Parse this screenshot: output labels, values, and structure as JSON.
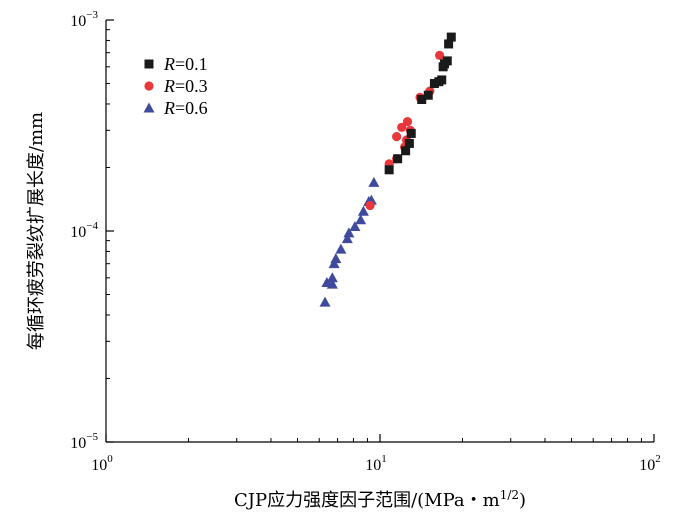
{
  "chart_data": {
    "type": "scatter",
    "x_scale": "log",
    "y_scale": "log",
    "xlim": [
      1,
      100
    ],
    "ylim": [
      1e-05,
      0.001
    ],
    "xlabel": "CJP应力强度因子范围/(MPa・m",
    "xlabel_sup": "1/2",
    "xlabel_end": ")",
    "ylabel": "每循环疲劳裂纹扩展长度/mm",
    "x_ticks": [
      {
        "value": 1,
        "base": "10",
        "exp": "0"
      },
      {
        "value": 10,
        "base": "10",
        "exp": "1"
      },
      {
        "value": 100,
        "base": "10",
        "exp": "2"
      }
    ],
    "y_ticks": [
      {
        "value": 0.001,
        "base": "10",
        "exp": "−3"
      },
      {
        "value": 0.0001,
        "base": "10",
        "exp": "−4"
      },
      {
        "value": 1e-05,
        "base": "10",
        "exp": "−5"
      }
    ],
    "legend_position": "top-left",
    "series": [
      {
        "name_prefix": "R",
        "name_suffix": "=0.1",
        "marker": "square",
        "color": "#1a1a1a",
        "points": [
          [
            10.8,
            0.000195
          ],
          [
            11.6,
            0.00022
          ],
          [
            12.4,
            0.00024
          ],
          [
            12.8,
            0.00026
          ],
          [
            13.0,
            0.00029
          ],
          [
            14.2,
            0.00042
          ],
          [
            15.0,
            0.00044
          ],
          [
            15.8,
            0.0005
          ],
          [
            16.4,
            0.00051
          ],
          [
            16.8,
            0.00052
          ],
          [
            17.0,
            0.0006
          ],
          [
            17.2,
            0.00062
          ],
          [
            17.6,
            0.00064
          ],
          [
            17.8,
            0.00077
          ],
          [
            18.2,
            0.00083
          ]
        ]
      },
      {
        "name_prefix": "R",
        "name_suffix": "=0.3",
        "marker": "circle",
        "color": "#e8383b",
        "points": [
          [
            9.2,
            0.000132
          ],
          [
            10.8,
            0.000208
          ],
          [
            11.5,
            0.00022
          ],
          [
            11.5,
            0.00028
          ],
          [
            12.0,
            0.00031
          ],
          [
            12.3,
            0.00025
          ],
          [
            12.5,
            0.00027
          ],
          [
            12.6,
            0.00033
          ],
          [
            12.9,
            0.0003
          ],
          [
            14.0,
            0.00043
          ],
          [
            15.2,
            0.00046
          ],
          [
            16.5,
            0.00068
          ]
        ]
      },
      {
        "name_prefix": "R",
        "name_suffix": "=0.6",
        "marker": "triangle",
        "color": "#3f4a9c",
        "points": [
          [
            6.3,
            4.6e-05
          ],
          [
            6.4,
            5.7e-05
          ],
          [
            6.7,
            5.6e-05
          ],
          [
            6.7,
            6e-05
          ],
          [
            6.8,
            7e-05
          ],
          [
            6.9,
            7.4e-05
          ],
          [
            7.2,
            8.2e-05
          ],
          [
            7.6,
            9.2e-05
          ],
          [
            7.7,
            9.8e-05
          ],
          [
            8.1,
            0.000105
          ],
          [
            8.5,
            0.000113
          ],
          [
            8.7,
            0.000124
          ],
          [
            9.1,
            0.000138
          ],
          [
            9.3,
            0.00014
          ],
          [
            9.5,
            0.00017
          ]
        ]
      }
    ]
  }
}
